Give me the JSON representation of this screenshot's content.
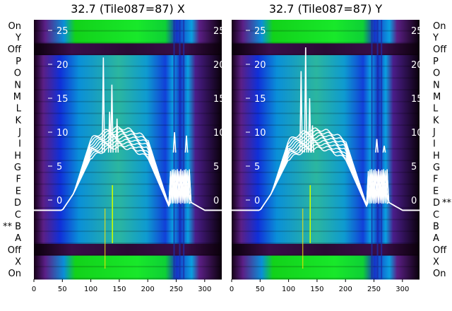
{
  "chart_data": [
    {
      "type": "heatmap",
      "title": "32.7 (Tile087=87) X",
      "x_ticks": [
        0,
        50,
        100,
        150,
        200,
        250,
        300
      ],
      "xlim": [
        0,
        330
      ],
      "y_ticks": [
        0,
        5,
        10,
        15,
        20,
        25
      ],
      "row_labels": [
        "On",
        "Y",
        "Off",
        "P",
        "O",
        "N",
        "M",
        "L",
        "K",
        "J",
        "I",
        "H",
        "G",
        "F",
        "E",
        "D",
        "C",
        "B",
        "A",
        "Off",
        "X",
        "On"
      ],
      "row_marker": {
        "row": "B",
        "text": "**",
        "side": "left"
      },
      "row_marker_side": "left",
      "overlay_series_count": 9,
      "overlay_color": "#ffffff",
      "colormap": [
        "#1a001a",
        "#6b1f8c",
        "#0022cc",
        "#0088dd",
        "#22bb99",
        "#11cc22",
        "#00ff00"
      ]
    },
    {
      "type": "heatmap",
      "title": "32.7 (Tile087=87) Y",
      "x_ticks": [
        0,
        50,
        100,
        150,
        200,
        250,
        300
      ],
      "xlim": [
        0,
        330
      ],
      "y_ticks": [
        0,
        5,
        10,
        15,
        20,
        25
      ],
      "row_labels": [
        "On",
        "Y",
        "Off",
        "P",
        "O",
        "N",
        "M",
        "L",
        "K",
        "J",
        "I",
        "H",
        "G",
        "F",
        "E",
        "D",
        "C",
        "B",
        "A",
        "Off",
        "X",
        "On"
      ],
      "row_marker": {
        "row": "D",
        "text": "**",
        "side": "right"
      },
      "row_marker_side": "right",
      "overlay_series_count": 9,
      "overlay_color": "#ffffff",
      "colormap": [
        "#1a001a",
        "#6b1f8c",
        "#0022cc",
        "#0088dd",
        "#22bb99",
        "#11cc22",
        "#00ff00"
      ]
    }
  ]
}
